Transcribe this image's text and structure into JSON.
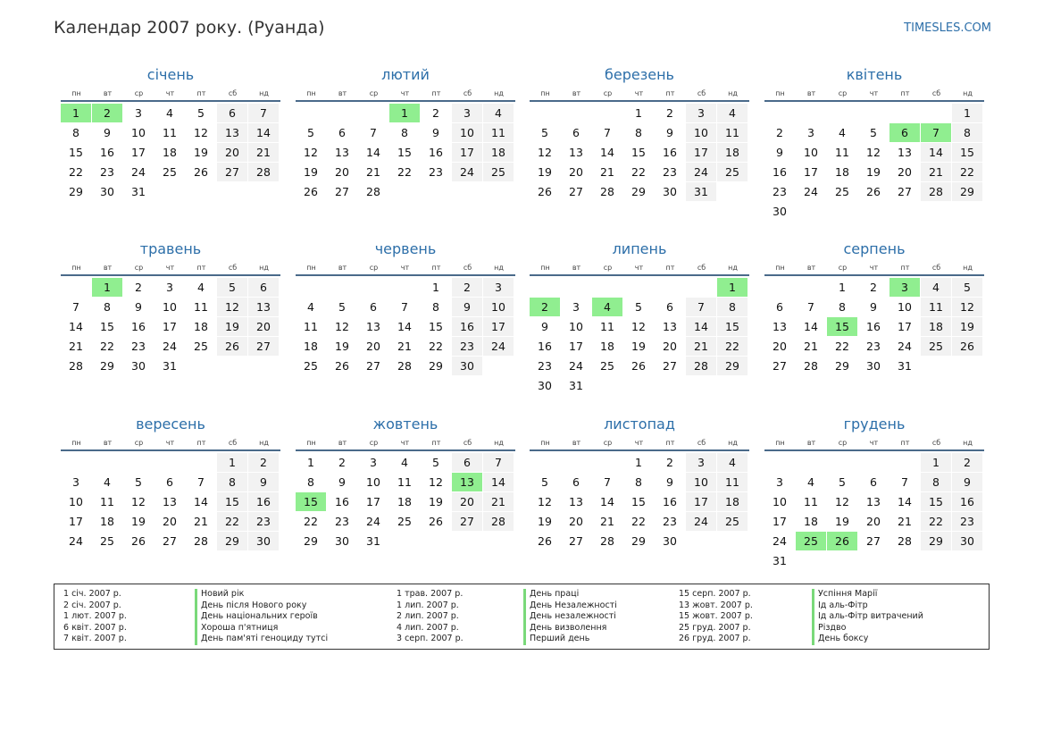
{
  "header": {
    "title": "Календар 2007 року. (Руанда)",
    "brand": "TIMESLES.COM"
  },
  "weekdays": [
    "пн",
    "вт",
    "ср",
    "чт",
    "пт",
    "сб",
    "нд"
  ],
  "year": 2007,
  "months": [
    {
      "name": "січень",
      "start_weekday": 0,
      "days": 31,
      "holidays": [
        1,
        2
      ]
    },
    {
      "name": "лютий",
      "start_weekday": 3,
      "days": 28,
      "holidays": [
        1
      ]
    },
    {
      "name": "березень",
      "start_weekday": 3,
      "days": 31,
      "holidays": []
    },
    {
      "name": "квітень",
      "start_weekday": 6,
      "days": 30,
      "holidays": [
        6,
        7
      ]
    },
    {
      "name": "травень",
      "start_weekday": 1,
      "days": 31,
      "holidays": [
        1
      ]
    },
    {
      "name": "червень",
      "start_weekday": 4,
      "days": 30,
      "holidays": []
    },
    {
      "name": "липень",
      "start_weekday": 6,
      "days": 31,
      "holidays": [
        1,
        2,
        4
      ]
    },
    {
      "name": "серпень",
      "start_weekday": 2,
      "days": 31,
      "holidays": [
        3,
        15
      ]
    },
    {
      "name": "вересень",
      "start_weekday": 5,
      "days": 30,
      "holidays": []
    },
    {
      "name": "жовтень",
      "start_weekday": 0,
      "days": 31,
      "holidays": [
        13,
        15
      ]
    },
    {
      "name": "листопад",
      "start_weekday": 3,
      "days": 30,
      "holidays": []
    },
    {
      "name": "грудень",
      "start_weekday": 5,
      "days": 31,
      "holidays": [
        25,
        26
      ]
    }
  ],
  "legend": [
    {
      "date": "1 січ. 2007 р.",
      "name": "Новий рік"
    },
    {
      "date": "2 січ. 2007 р.",
      "name": "День після Нового року"
    },
    {
      "date": "1 лют. 2007 р.",
      "name": "День національних героїв"
    },
    {
      "date": "6 квіт. 2007 р.",
      "name": "Хороша п'ятниця"
    },
    {
      "date": "7 квіт. 2007 р.",
      "name": "День пам'яті геноциду тутсі"
    },
    {
      "date": "1 трав. 2007 р.",
      "name": "День праці"
    },
    {
      "date": "1 лип. 2007 р.",
      "name": "День Незалежності"
    },
    {
      "date": "2 лип. 2007 р.",
      "name": "День незалежності"
    },
    {
      "date": "4 лип. 2007 р.",
      "name": "День визволення"
    },
    {
      "date": "3 серп. 2007 р.",
      "name": "Перший день"
    },
    {
      "date": "15 серп. 2007 р.",
      "name": "Успіння Марії"
    },
    {
      "date": "13 жовт. 2007 р.",
      "name": "Ід аль-Фітр"
    },
    {
      "date": "15 жовт. 2007 р.",
      "name": "Ід аль-Фітр витрачений"
    },
    {
      "date": "25 груд. 2007 р.",
      "name": "Різдво"
    },
    {
      "date": "26 груд. 2007 р.",
      "name": "День боксу"
    }
  ]
}
